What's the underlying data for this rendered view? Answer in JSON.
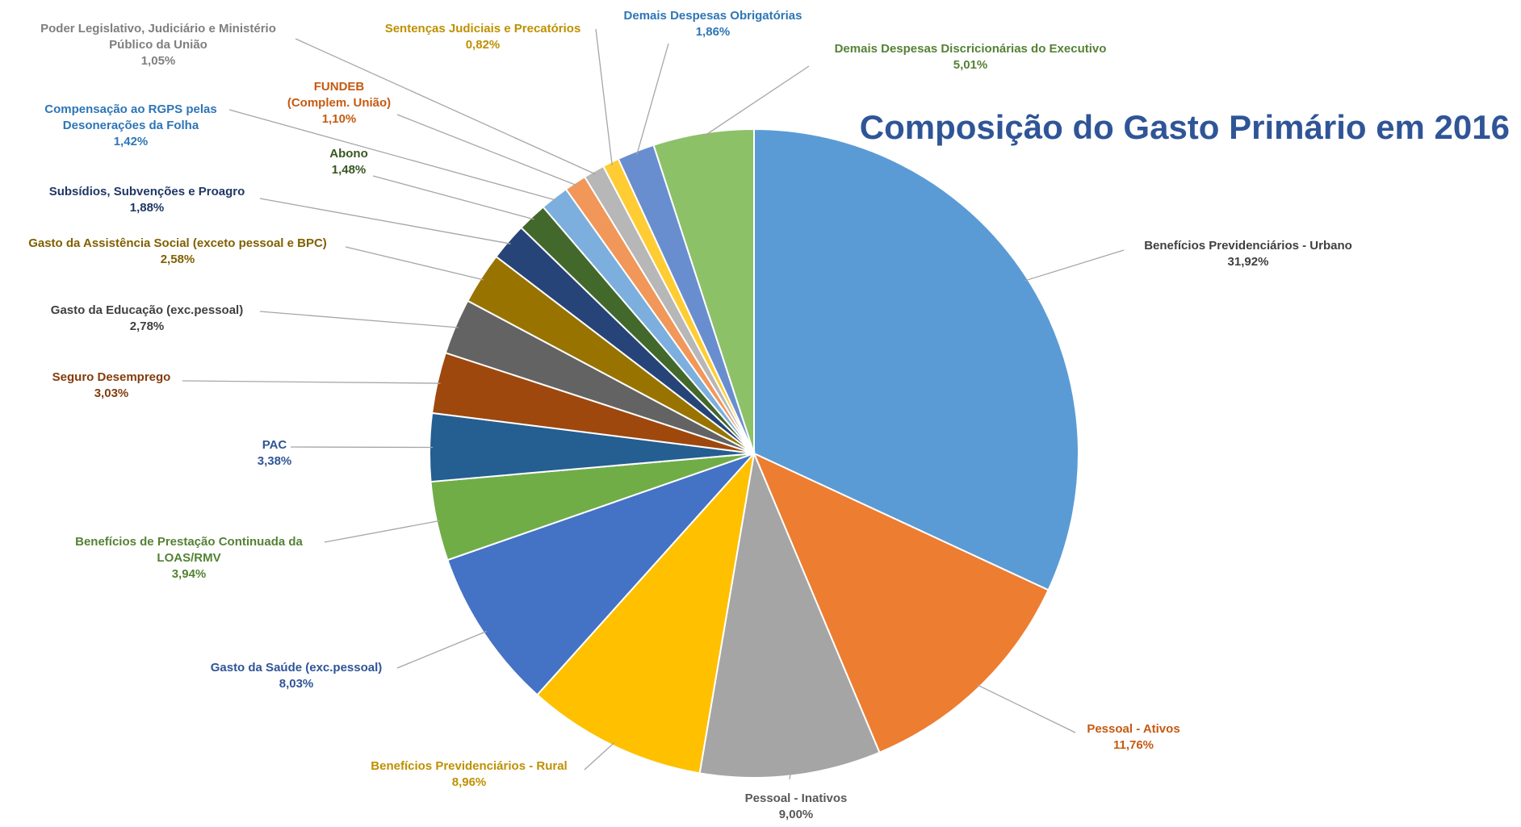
{
  "chart_data": {
    "type": "pie",
    "title": "Composição do Gasto Primário em 2016",
    "categories": [
      "Benefícios Previdenciários - Urbano",
      "Pessoal - Ativos",
      "Pessoal - Inativos",
      "Benefícios Previdenciários - Rural",
      "Gasto da Saúde (exc.pessoal)",
      "Benefícios de Prestação Continuada da\nLOAS/RMV",
      "PAC",
      "Seguro Desemprego",
      "Gasto da Educação (exc.pessoal)",
      "Gasto da Assistência Social (exceto pessoal e BPC)",
      "Subsídios, Subvenções e Proagro",
      "Abono",
      "Compensação ao RGPS pelas\nDesonerações da Folha",
      "FUNDEB\n(Complem. União)",
      "Poder Legislativo, Judiciário e Ministério\nPúblico da União",
      "Sentenças Judiciais e Precatórios",
      "Demais Despesas Obrigatórias",
      "Demais Despesas Discricionárias do Executivo"
    ],
    "values": [
      31.92,
      11.76,
      9.0,
      8.96,
      8.03,
      3.94,
      3.38,
      3.03,
      2.78,
      2.58,
      1.88,
      1.48,
      1.42,
      1.1,
      1.05,
      0.82,
      1.86,
      5.01
    ],
    "value_labels": [
      "31,92%",
      "11,76%",
      "9,00%",
      "8,96%",
      "8,03%",
      "3,94%",
      "3,38%",
      "3,03%",
      "2,78%",
      "2,58%",
      "1,88%",
      "1,48%",
      "1,42%",
      "1,10%",
      "1,05%",
      "0,82%",
      "1,86%",
      "5,01%"
    ],
    "colors": [
      "#5b9bd5",
      "#ed7d31",
      "#a5a5a5",
      "#ffc000",
      "#4472c4",
      "#70ad47",
      "#255e91",
      "#9e480e",
      "#636363",
      "#997300",
      "#264478",
      "#43682b",
      "#7cafdd",
      "#f1975a",
      "#b7b7b7",
      "#ffcd33",
      "#698ed0",
      "#8cc168"
    ],
    "label_colors": [
      "#404040",
      "#c55a11",
      "#595959",
      "#bf9000",
      "#2f5597",
      "#548235",
      "#2f5597",
      "#843c0c",
      "#404040",
      "#806000",
      "#1f3864",
      "#375623",
      "#2e75b6",
      "#c55a11",
      "#7f7f7f",
      "#bf9000",
      "#2e75b6",
      "#548235"
    ]
  }
}
